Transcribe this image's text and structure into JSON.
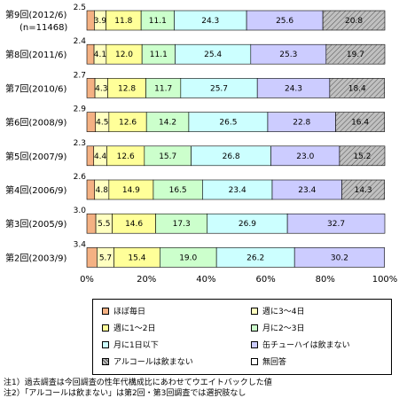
{
  "chart_data": {
    "type": "bar",
    "orientation": "horizontal",
    "stacked": true,
    "percent": true,
    "categories": [
      "第9回(2012/6)",
      "第8回(2011/6)",
      "第7回(2010/6)",
      "第6回(2008/9)",
      "第5回(2007/9)",
      "第4回(2006/9)",
      "第3回(2005/9)",
      "第2回(2003/9)"
    ],
    "category_subtitles": [
      "(n=11468)",
      "",
      "",
      "",
      "",
      "",
      "",
      ""
    ],
    "series": [
      {
        "name": "ほぼ毎日",
        "color": "#f4b183",
        "values": [
          2.5,
          2.4,
          2.7,
          2.9,
          2.3,
          2.6,
          3.0,
          3.4
        ]
      },
      {
        "name": "週に3～4日",
        "color": "#ffffc0",
        "values": [
          3.9,
          4.1,
          4.3,
          4.5,
          4.4,
          4.8,
          5.5,
          5.7
        ]
      },
      {
        "name": "週に1～2日",
        "color": "#ffff99",
        "values": [
          11.8,
          12.0,
          12.8,
          12.6,
          12.6,
          14.9,
          14.6,
          15.4
        ]
      },
      {
        "name": "月に2～3日",
        "color": "#ccffcc",
        "values": [
          11.1,
          11.1,
          11.7,
          14.2,
          15.7,
          16.5,
          17.3,
          19.0
        ]
      },
      {
        "name": "月に1日以下",
        "color": "#ccffff",
        "values": [
          24.3,
          25.4,
          25.7,
          26.5,
          26.8,
          23.4,
          26.9,
          26.2
        ]
      },
      {
        "name": "缶チューハイは飲まない",
        "color": "#ccccff",
        "values": [
          25.6,
          25.3,
          24.3,
          22.8,
          23.0,
          23.4,
          32.7,
          30.2
        ]
      },
      {
        "name": "アルコールは飲まない",
        "color": "#c0c0c0",
        "hatched": true,
        "values": [
          20.8,
          19.7,
          18.4,
          16.4,
          15.2,
          14.3,
          null,
          null
        ]
      },
      {
        "name": "無回答",
        "color": "#ffffff",
        "values": [
          null,
          null,
          null,
          null,
          null,
          null,
          null,
          null
        ]
      }
    ],
    "xaxis_ticks": [
      "0%",
      "20%",
      "40%",
      "60%",
      "80%",
      "100%"
    ],
    "xlim": [
      0,
      100
    ],
    "legend_position": "bottom"
  },
  "notes": [
    "注1）過去調査は今回調査の性年代構成比にあわせてウエイトバックした値",
    "注2）「アルコールは飲まない」は第2回・第3回調査では選択肢なし"
  ]
}
